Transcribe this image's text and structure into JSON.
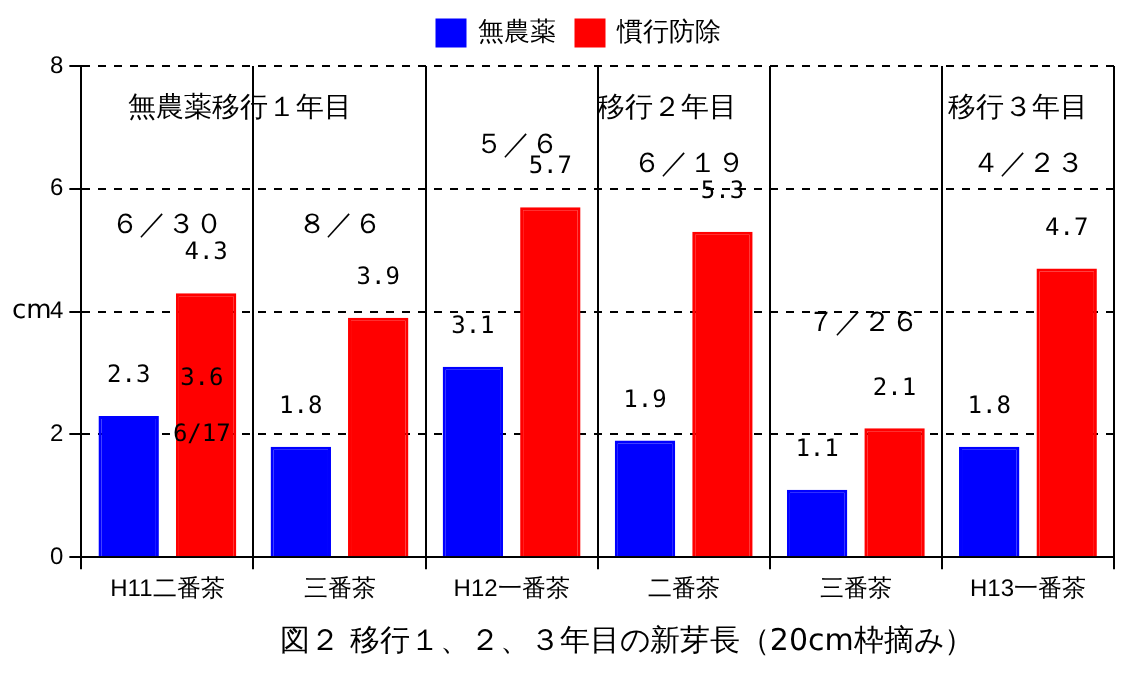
{
  "chart_data": {
    "type": "bar",
    "title": "図２ 移行１、２、３年目の新芽長（20cm枠摘み）",
    "ylabel": "cm",
    "categories": [
      "H11二番茶",
      "三番茶",
      "H12一番茶",
      "二番茶",
      "三番茶",
      "H13一番茶"
    ],
    "series": [
      {
        "name": "無農薬",
        "color": "#0000ff",
        "values": [
          2.3,
          1.8,
          3.1,
          1.9,
          1.1,
          1.8
        ]
      },
      {
        "name": "慣行防除",
        "color": "#ff0000",
        "values": [
          4.3,
          3.9,
          5.7,
          5.3,
          2.1,
          4.7
        ]
      }
    ],
    "ylim": [
      0,
      8
    ],
    "yticks": [
      0,
      2,
      4,
      6,
      8
    ],
    "grid": true,
    "legend": "top",
    "data_labels": true,
    "annotations": [
      "無農薬移行１年目",
      "６／３０",
      "８／６",
      "５／６",
      "移行２年目",
      "６／１９",
      "７／２６",
      "移行３年目",
      "４／２３",
      "3.6",
      "6/17"
    ]
  }
}
